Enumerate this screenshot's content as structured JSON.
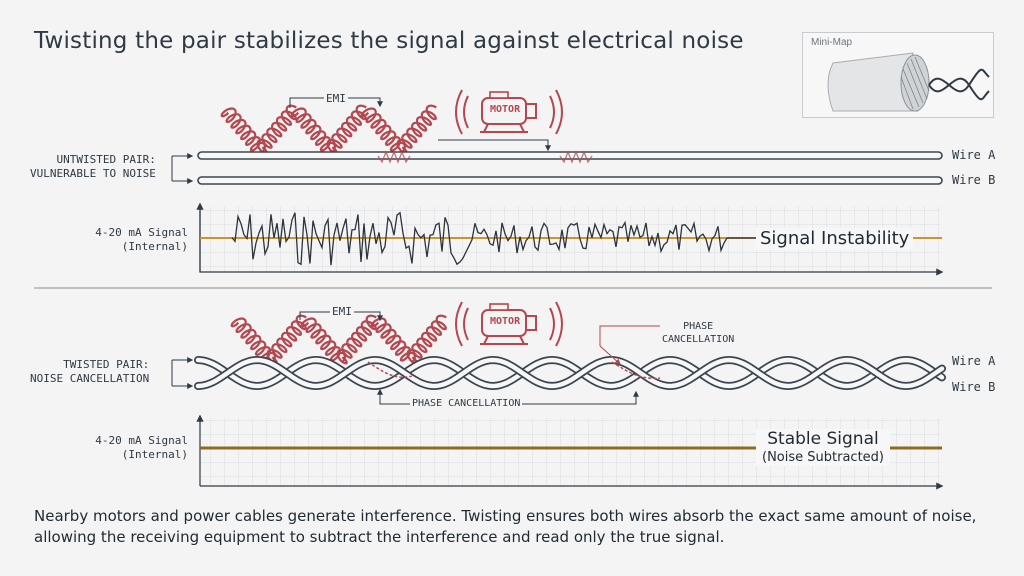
{
  "title": "Twisting the pair stabilizes the signal against electrical noise",
  "minimap": {
    "label": "Mini-Map"
  },
  "colors": {
    "emi": "#b4474f",
    "wire": "#3b4650",
    "signal": "#c9962c",
    "grid": "#d8dcdf",
    "background": "#f3f4f3"
  },
  "untwisted": {
    "label_line1": "UNTWISTED PAIR:",
    "label_line2": "VULNERABLE TO NOISE",
    "emi_label": "EMI",
    "motor_label": "MOTOR",
    "wire_a": "Wire A",
    "wire_b": "Wire B",
    "signal_label_line1": "4-20 mA Signal",
    "signal_label_line2": "(Internal)",
    "status": "Signal Instability"
  },
  "twisted": {
    "label_line1": "TWISTED PAIR:",
    "label_line2": "NOISE CANCELLATION",
    "emi_label": "EMI",
    "motor_label": "MOTOR",
    "phase_top_line1": "PHASE",
    "phase_top_line2": "CANCELLATION",
    "phase_bottom": "PHASE CANCELLATION",
    "wire_a": "Wire A",
    "wire_b": "Wire B",
    "signal_label_line1": "4-20 mA Signal",
    "signal_label_line2": "(Internal)",
    "status_line1": "Stable Signal",
    "status_line2": "(Noise Subtracted)"
  },
  "caption": "Nearby motors and power cables generate interference. Twisting ensures both wires absorb the exact same amount of noise, allowing the receiving equipment to subtract the interference and read only the true signal.",
  "icons": [
    "motor-icon",
    "emi-wave-icon",
    "cable-icon"
  ]
}
